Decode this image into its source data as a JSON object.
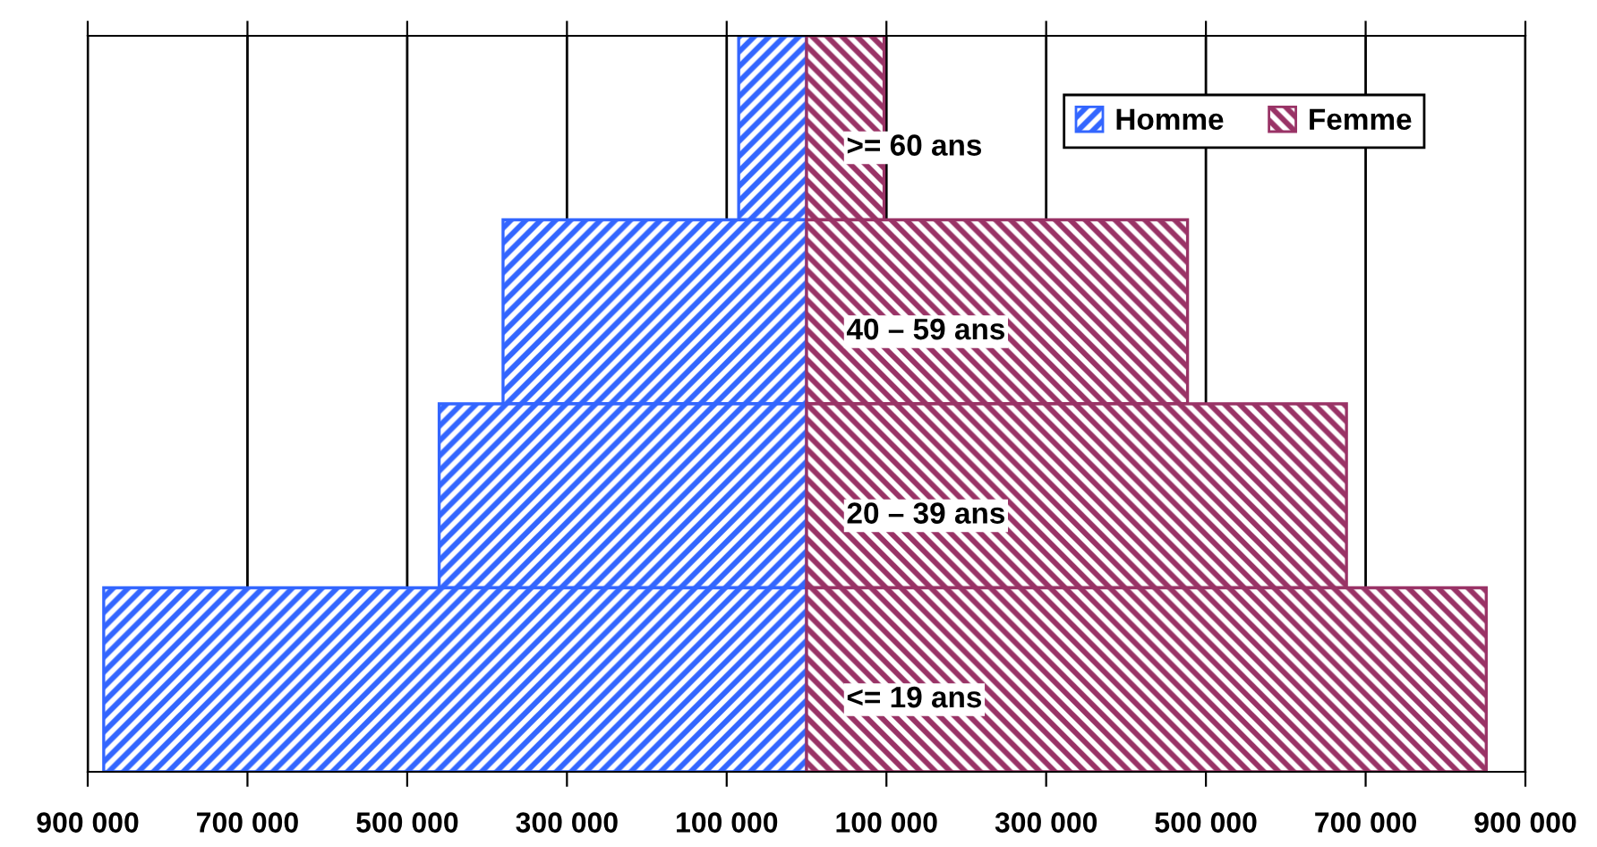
{
  "chart_data": {
    "type": "bar",
    "orientation": "horizontal",
    "stacked": true,
    "categories": [
      ">= 60 ans",
      "40 – 59 ans",
      "20 – 39 ans",
      "<= 19 ans"
    ],
    "series": [
      {
        "name": "Homme",
        "color": "#3366ff",
        "values": [
          -85000,
          -380000,
          -460000,
          -880000
        ]
      },
      {
        "name": "Femme",
        "color": "#993366",
        "values": [
          97000,
          477000,
          676000,
          851000
        ]
      }
    ],
    "xlim": [
      -900000,
      900000
    ],
    "xticks": [
      {
        "value": -900000,
        "label": "900 000"
      },
      {
        "value": -700000,
        "label": "700 000"
      },
      {
        "value": -500000,
        "label": "500 000"
      },
      {
        "value": -300000,
        "label": "300 000"
      },
      {
        "value": -100000,
        "label": "100 000"
      },
      {
        "value": 100000,
        "label": "100 000"
      },
      {
        "value": 300000,
        "label": "300 000"
      },
      {
        "value": 500000,
        "label": "500 000"
      },
      {
        "value": 700000,
        "label": "700 000"
      },
      {
        "value": 900000,
        "label": "900 000"
      }
    ],
    "grid": "x",
    "legend": "top right"
  }
}
